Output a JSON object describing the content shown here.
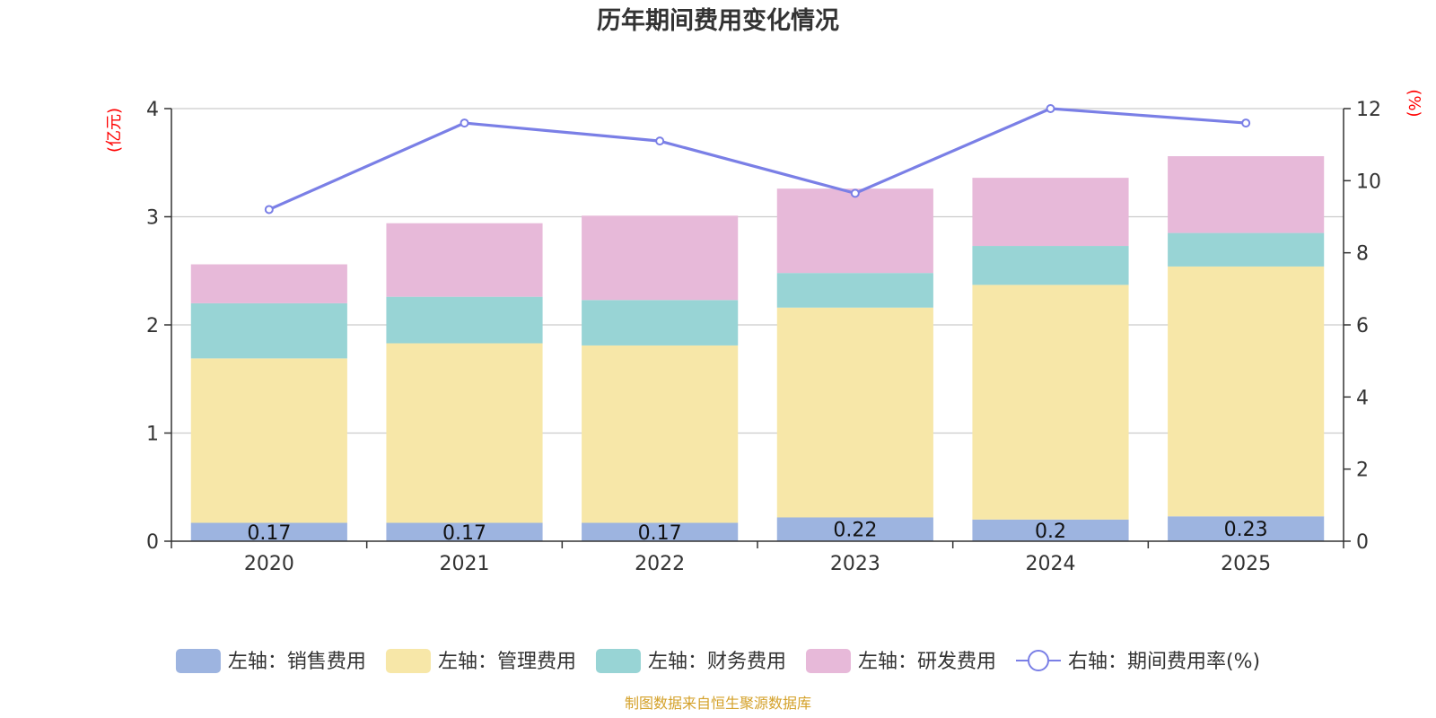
{
  "chart_data": {
    "type": "bar",
    "stacked": true,
    "title": "历年期间费用变化情况",
    "categories": [
      "2020",
      "2021",
      "2022",
      "2023",
      "2024",
      "2025"
    ],
    "left_axis": {
      "name": "(亿元)",
      "ylim": [
        0,
        4
      ],
      "ticks": [
        0,
        1,
        2,
        3,
        4
      ]
    },
    "right_axis": {
      "name": "(%)",
      "ylim": [
        0,
        12
      ],
      "ticks": [
        0,
        2,
        4,
        6,
        8,
        10,
        12
      ]
    },
    "grid": true,
    "series": [
      {
        "key": "sales",
        "name": "左轴：销售费用",
        "type": "bar",
        "axis": "left",
        "color": "#9db4e0",
        "values": [
          0.17,
          0.17,
          0.17,
          0.22,
          0.2,
          0.23
        ],
        "labels": [
          "0.17",
          "0.17",
          "0.17",
          "0.22",
          "0.2",
          "0.23"
        ]
      },
      {
        "key": "admin",
        "name": "左轴：管理费用",
        "type": "bar",
        "axis": "left",
        "color": "#f7e7a8",
        "values": [
          1.52,
          1.66,
          1.64,
          1.94,
          2.17,
          2.31
        ]
      },
      {
        "key": "finance",
        "name": "左轴：财务费用",
        "type": "bar",
        "axis": "left",
        "color": "#98d4d5",
        "values": [
          0.51,
          0.43,
          0.42,
          0.32,
          0.36,
          0.31
        ]
      },
      {
        "key": "rnd",
        "name": "左轴：研发费用",
        "type": "bar",
        "axis": "left",
        "color": "#e7b9d9",
        "values": [
          0.36,
          0.68,
          0.78,
          0.78,
          0.63,
          0.71
        ]
      },
      {
        "key": "rate",
        "name": "右轴：期间费用率(%)",
        "type": "line",
        "axis": "right",
        "color": "#7a7fe6",
        "values": [
          9.2,
          11.6,
          11.1,
          9.65,
          12.0,
          11.6
        ]
      }
    ],
    "legend_position": "bottom",
    "source": "制图数据来自恒生聚源数据库"
  }
}
